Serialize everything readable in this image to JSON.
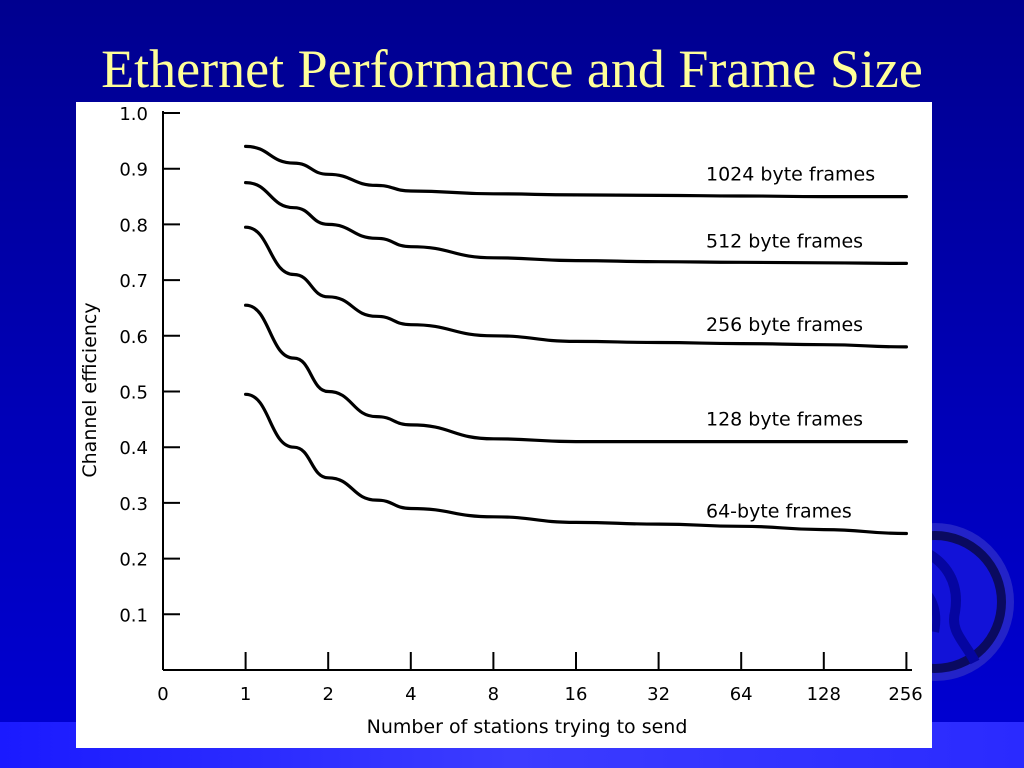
{
  "slide": {
    "title": "Ethernet Performance and Frame Size"
  },
  "colors": {
    "background": "#0000b8",
    "title": "#ffff99",
    "chart_background": "#ffffff",
    "chart_ink": "#000000"
  },
  "icons": {
    "decoration": "globe-icon"
  },
  "chart_data": {
    "type": "line",
    "title": "",
    "xlabel": "Number of stations trying to send",
    "ylabel": "Channel efficiency",
    "x_scale": "log2",
    "x_tick_labels": [
      "0",
      "1",
      "2",
      "4",
      "8",
      "16",
      "32",
      "64",
      "128",
      "256"
    ],
    "y_tick_labels": [
      "0.1",
      "0.2",
      "0.3",
      "0.4",
      "0.5",
      "0.6",
      "0.7",
      "0.8",
      "0.9",
      "1.0"
    ],
    "ylim": [
      0,
      1.0
    ],
    "grid": false,
    "legend": "inline labels at right of each curve",
    "x": [
      1,
      1.5,
      2,
      3,
      4,
      8,
      16,
      32,
      64,
      128,
      256
    ],
    "series": [
      {
        "name": "1024 byte frames",
        "values": [
          0.94,
          0.91,
          0.89,
          0.87,
          0.86,
          0.855,
          0.853,
          0.852,
          0.851,
          0.85,
          0.85
        ]
      },
      {
        "name": "512 byte frames",
        "values": [
          0.875,
          0.83,
          0.8,
          0.775,
          0.76,
          0.74,
          0.735,
          0.733,
          0.732,
          0.731,
          0.73
        ]
      },
      {
        "name": "256 byte frames",
        "values": [
          0.795,
          0.71,
          0.67,
          0.635,
          0.62,
          0.6,
          0.59,
          0.588,
          0.586,
          0.584,
          0.58
        ]
      },
      {
        "name": "128 byte frames",
        "values": [
          0.655,
          0.56,
          0.5,
          0.455,
          0.44,
          0.415,
          0.41,
          0.41,
          0.41,
          0.41,
          0.41
        ]
      },
      {
        "name": "64-byte frames",
        "values": [
          0.495,
          0.4,
          0.345,
          0.305,
          0.29,
          0.275,
          0.265,
          0.262,
          0.258,
          0.252,
          0.245
        ]
      }
    ]
  }
}
